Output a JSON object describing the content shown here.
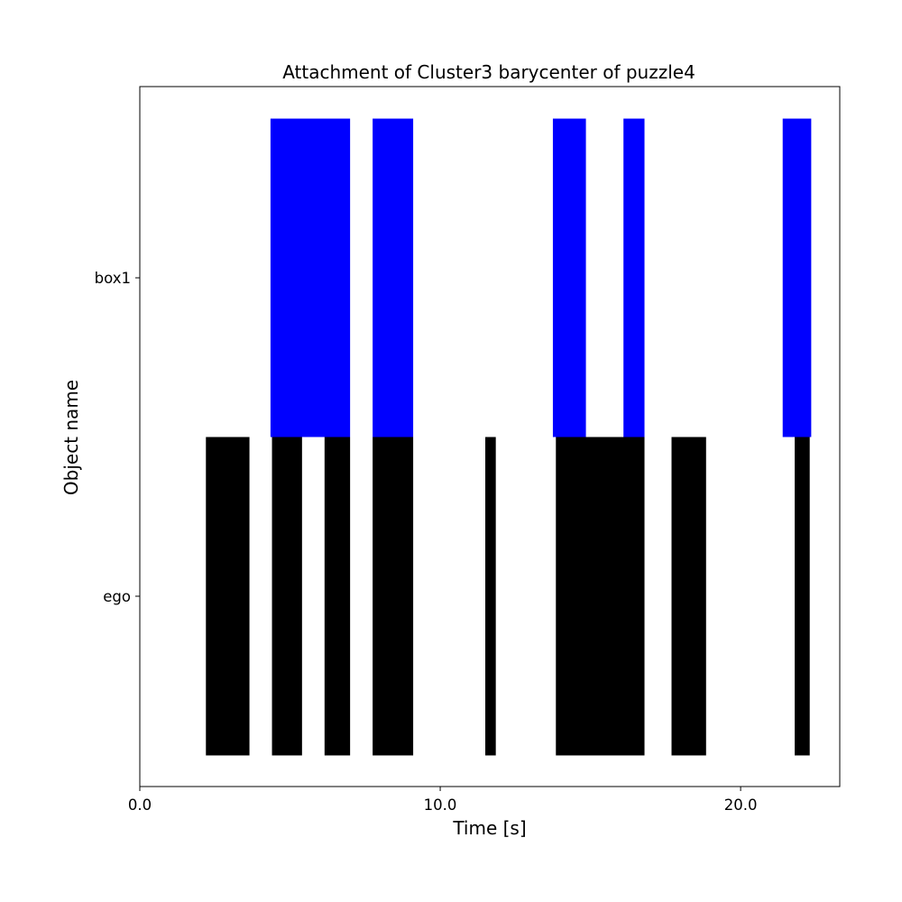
{
  "chart_data": {
    "type": "timeline",
    "title": "Attachment of Cluster3 barycenter of puzzle4",
    "xlabel": "Time [s]",
    "ylabel": "Object name",
    "xlim": [
      0,
      23.3
    ],
    "xticks": [
      0,
      10,
      20
    ],
    "xtick_labels": [
      "0.0",
      "10.0",
      "20.0"
    ],
    "categories": [
      "ego",
      "box1"
    ],
    "series": [
      {
        "category": "box1",
        "color": "#0000ff",
        "intervals": [
          [
            4.35,
            7.0
          ],
          [
            7.75,
            9.1
          ],
          [
            13.75,
            14.85
          ],
          [
            16.1,
            16.8
          ],
          [
            21.4,
            22.35
          ]
        ]
      },
      {
        "category": "ego",
        "color": "#000000",
        "intervals": [
          [
            2.2,
            3.65
          ],
          [
            4.4,
            5.4
          ],
          [
            6.15,
            7.0
          ],
          [
            7.75,
            9.1
          ],
          [
            11.5,
            11.85
          ],
          [
            13.85,
            16.8
          ],
          [
            17.7,
            18.85
          ],
          [
            21.8,
            22.3
          ]
        ]
      }
    ],
    "grid": false,
    "legend": "none"
  }
}
